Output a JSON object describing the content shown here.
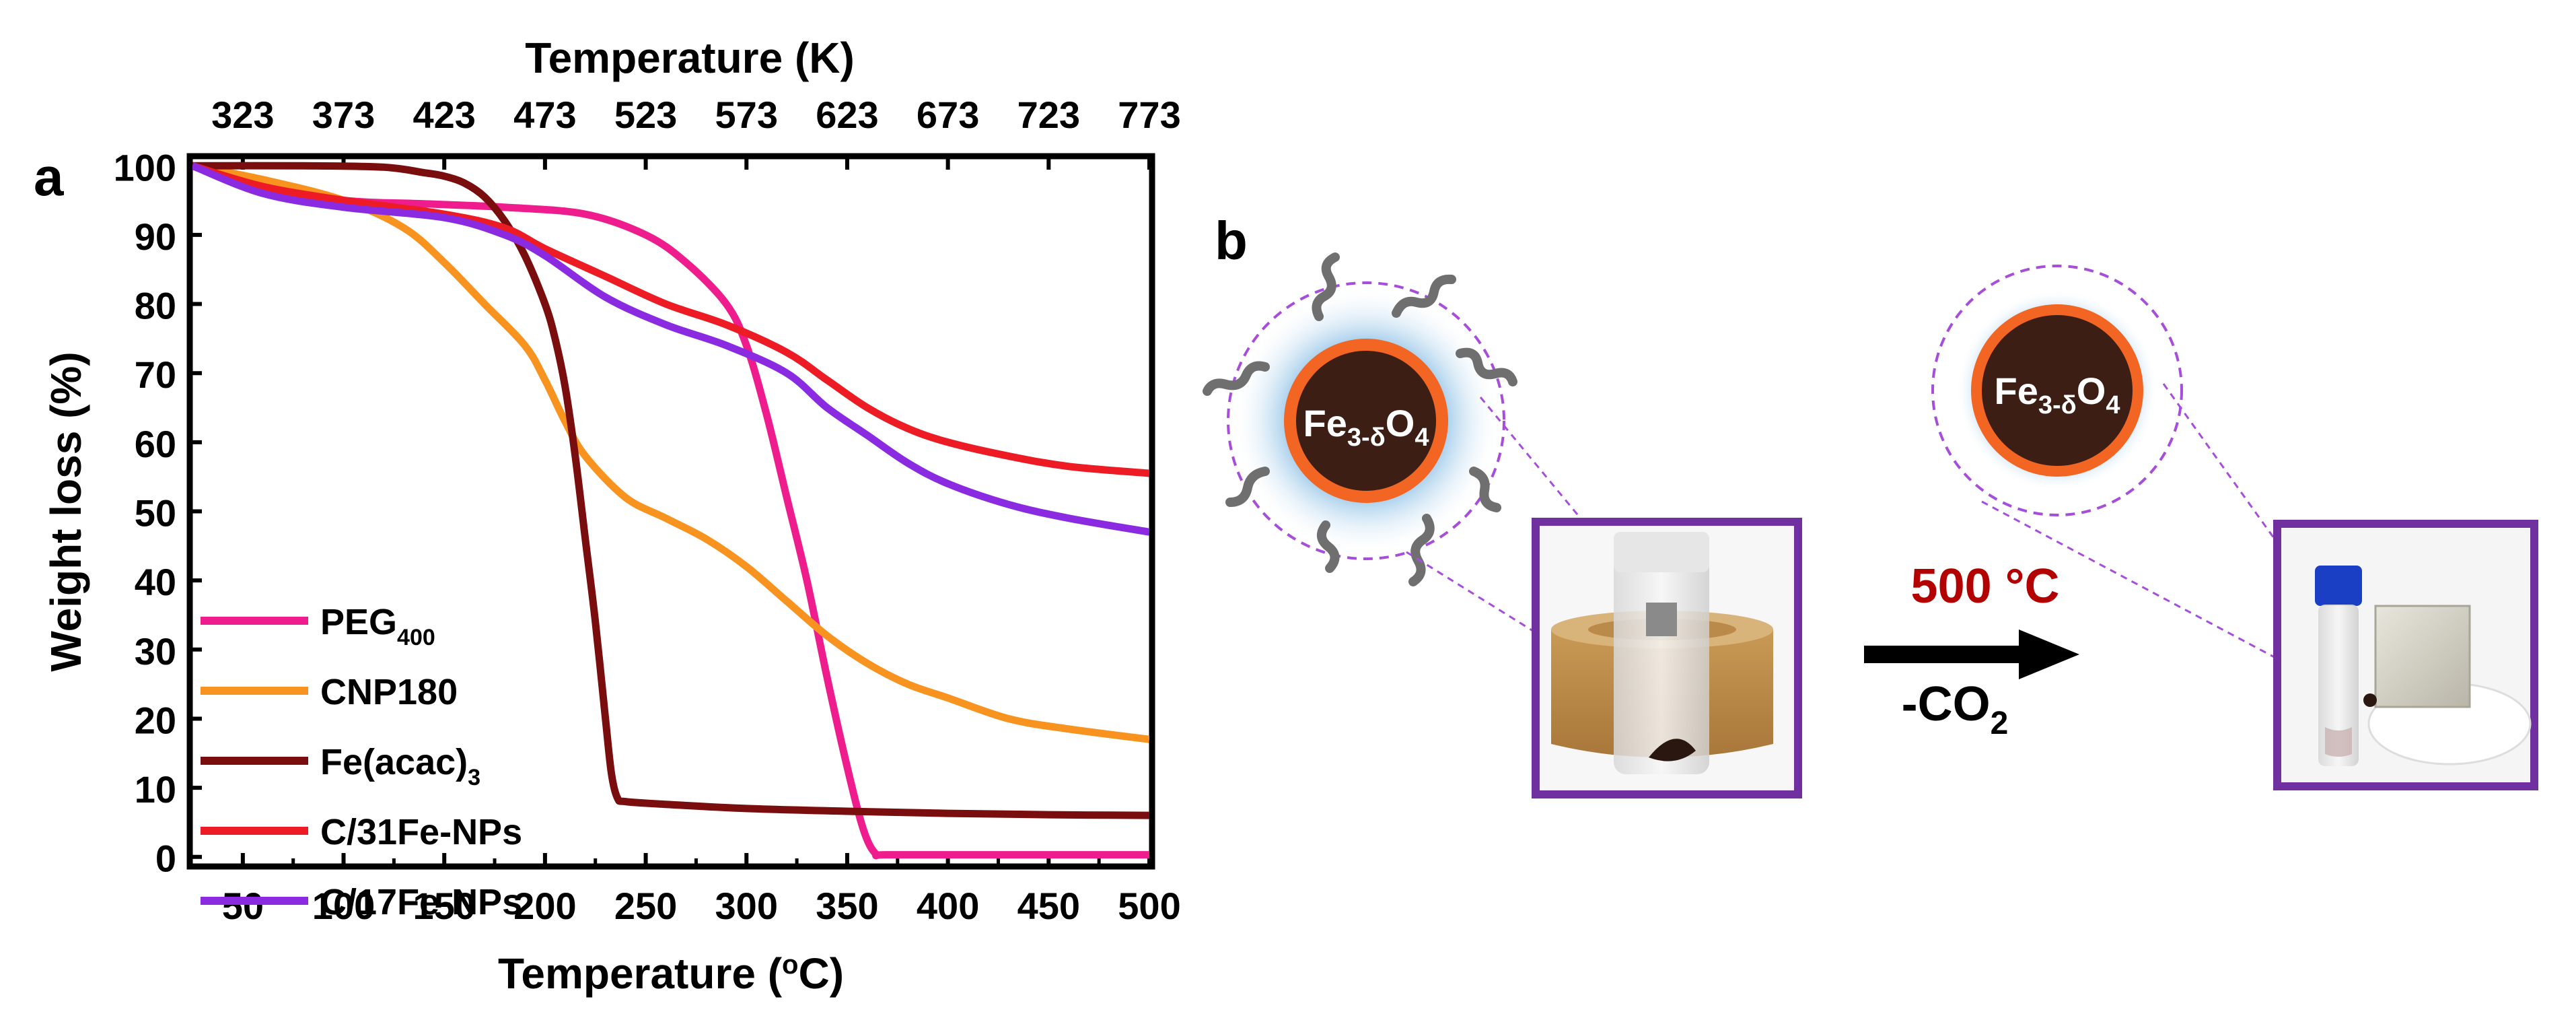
{
  "panel_a_label": "a",
  "panel_b_label": "b",
  "chart_data": {
    "type": "line",
    "title": "",
    "xlabel_bottom": "Temperature (°C)",
    "xlabel_top": "Temperature (K)",
    "ylabel": "Weight loss (%)",
    "xlim": [
      25,
      500
    ],
    "ylim": [
      -1,
      101
    ],
    "xticks": [
      50,
      100,
      150,
      200,
      250,
      300,
      350,
      400,
      450,
      500
    ],
    "xticks_top": [
      323,
      373,
      423,
      473,
      523,
      573,
      623,
      673,
      723,
      773
    ],
    "yticks": [
      0,
      10,
      20,
      30,
      40,
      50,
      60,
      70,
      80,
      90,
      100
    ],
    "legend_position": "bottom-left",
    "series": [
      {
        "name": "PEG400",
        "name_main": "PEG",
        "name_sub": "400",
        "color": "#ee1c8c",
        "x": [
          25,
          60,
          100,
          140,
          180,
          220,
          250,
          270,
          290,
          300,
          310,
          320,
          330,
          340,
          350,
          358,
          364,
          370,
          420,
          500
        ],
        "y": [
          100,
          97,
          95,
          94.5,
          94,
          93,
          90,
          86,
          80,
          74,
          64,
          52,
          40,
          26,
          13,
          4,
          0.5,
          0.3,
          0.3,
          0.3
        ]
      },
      {
        "name": "CNP180",
        "color": "#f7931e",
        "x": [
          25,
          60,
          100,
          130,
          150,
          170,
          190,
          200,
          210,
          220,
          240,
          260,
          280,
          300,
          320,
          340,
          360,
          380,
          400,
          430,
          460,
          500
        ],
        "y": [
          100,
          98,
          95,
          91,
          86,
          80,
          74,
          69,
          63,
          58,
          52,
          49,
          46,
          42,
          37,
          32,
          28,
          25,
          23,
          20,
          18.5,
          17
        ]
      },
      {
        "name": "Fe(acac)3",
        "name_main": "Fe(acac)",
        "name_sub": "3",
        "color": "#7a0d0d",
        "x": [
          25,
          80,
          120,
          140,
          150,
          160,
          170,
          180,
          190,
          200,
          205,
          210,
          215,
          220,
          225,
          230,
          233,
          236,
          240,
          260,
          300,
          350,
          400,
          450,
          500
        ],
        "y": [
          100,
          100,
          99.8,
          99,
          98.5,
          97.5,
          95.5,
          92,
          87,
          80,
          75,
          68,
          58,
          46,
          34,
          20,
          12,
          8.5,
          8,
          7.6,
          7,
          6.6,
          6.3,
          6.1,
          6
        ]
      },
      {
        "name": "C/31Fe-NPs",
        "color": "#ed1c24",
        "x": [
          25,
          60,
          100,
          150,
          180,
          200,
          230,
          260,
          290,
          320,
          340,
          360,
          380,
          400,
          430,
          460,
          500
        ],
        "y": [
          100,
          97,
          95,
          93,
          91,
          88,
          84,
          80,
          77,
          73,
          69,
          65,
          62,
          60,
          58,
          56.5,
          55.5
        ]
      },
      {
        "name": "C/17Fe-NPs",
        "color": "#8a2be2",
        "x": [
          25,
          60,
          100,
          150,
          180,
          200,
          230,
          260,
          290,
          320,
          340,
          360,
          380,
          400,
          430,
          460,
          500
        ],
        "y": [
          100,
          96,
          94,
          92.5,
          90,
          87,
          81,
          77,
          74,
          70,
          65,
          61,
          57,
          54,
          51,
          49,
          47
        ]
      }
    ]
  },
  "panel_b": {
    "particle_label_main": "Fe",
    "particle_label_sub": "3-δ",
    "particle_label_o": "O",
    "particle_label_sub2": "4",
    "arrow_top": "500 °C",
    "arrow_bottom_main": "-CO",
    "arrow_bottom_sub": "2",
    "colors": {
      "core": "#3c1e14",
      "shell": "#f26522",
      "halo": "#9cc8e6",
      "frame": "#7030a0",
      "dashed": "#a64ddc",
      "temperature_text": "#b30000",
      "ligand": "#6f6f6f"
    }
  }
}
